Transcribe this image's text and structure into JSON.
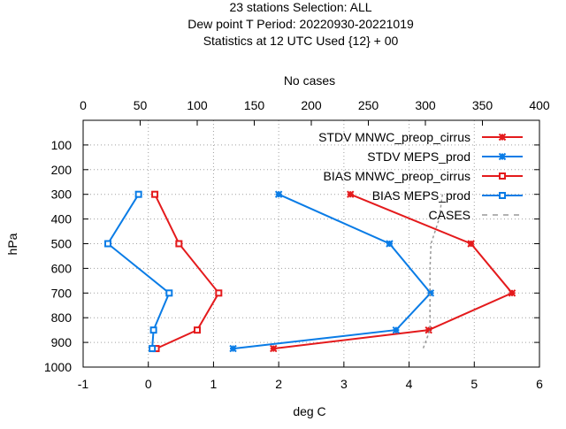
{
  "chart_data": {
    "type": "line",
    "title_lines": [
      "23 stations Selection: ALL",
      "Dew point T  Period: 20220930-20221019",
      "Statistics at 12 UTC  Used {12} + 00"
    ],
    "xlabel": "deg C",
    "ylabel": "hPa",
    "x2label": "No cases",
    "xlim": [
      -1,
      6
    ],
    "xticks": [
      "-1",
      "0",
      "1",
      "2",
      "3",
      "4",
      "5",
      "6"
    ],
    "ylim": [
      1000,
      0
    ],
    "yticks": [
      "100",
      "200",
      "300",
      "400",
      "500",
      "600",
      "700",
      "800",
      "900",
      "1000"
    ],
    "x2lim": [
      0,
      400
    ],
    "x2ticks": [
      "0",
      "50",
      "100",
      "150",
      "200",
      "250",
      "300",
      "350",
      "400"
    ],
    "grid": true,
    "legend_position": "top-right",
    "series": [
      {
        "name": "STDV MNWC_preop_cirrus",
        "color": "#e41a1c",
        "marker": "cross",
        "points": [
          [
            3.1,
            300
          ],
          [
            4.95,
            500
          ],
          [
            5.58,
            700
          ],
          [
            4.3,
            850
          ],
          [
            1.92,
            925
          ]
        ]
      },
      {
        "name": "STDV MEPS_prod",
        "color": "#0a7ce6",
        "marker": "cross",
        "points": [
          [
            2.0,
            300
          ],
          [
            3.7,
            500
          ],
          [
            4.33,
            700
          ],
          [
            3.8,
            850
          ],
          [
            1.3,
            925
          ]
        ]
      },
      {
        "name": "BIAS MNWC_preop_cirrus",
        "color": "#e41a1c",
        "marker": "square",
        "points": [
          [
            0.1,
            300
          ],
          [
            0.47,
            500
          ],
          [
            1.08,
            700
          ],
          [
            0.75,
            850
          ],
          [
            0.12,
            925
          ]
        ]
      },
      {
        "name": "BIAS MEPS_prod",
        "color": "#0a7ce6",
        "marker": "square",
        "points": [
          [
            -0.15,
            300
          ],
          [
            -0.62,
            500
          ],
          [
            0.32,
            700
          ],
          [
            0.08,
            850
          ],
          [
            0.06,
            925
          ]
        ]
      },
      {
        "name": "CASES",
        "color": "#999999",
        "marker": "none",
        "dashed": true,
        "axis": "x2",
        "points": [
          [
            315,
            300
          ],
          [
            312,
            400
          ],
          [
            305,
            500
          ],
          [
            304,
            600
          ],
          [
            304,
            700
          ],
          [
            304,
            850
          ],
          [
            298,
            925
          ]
        ]
      }
    ]
  }
}
